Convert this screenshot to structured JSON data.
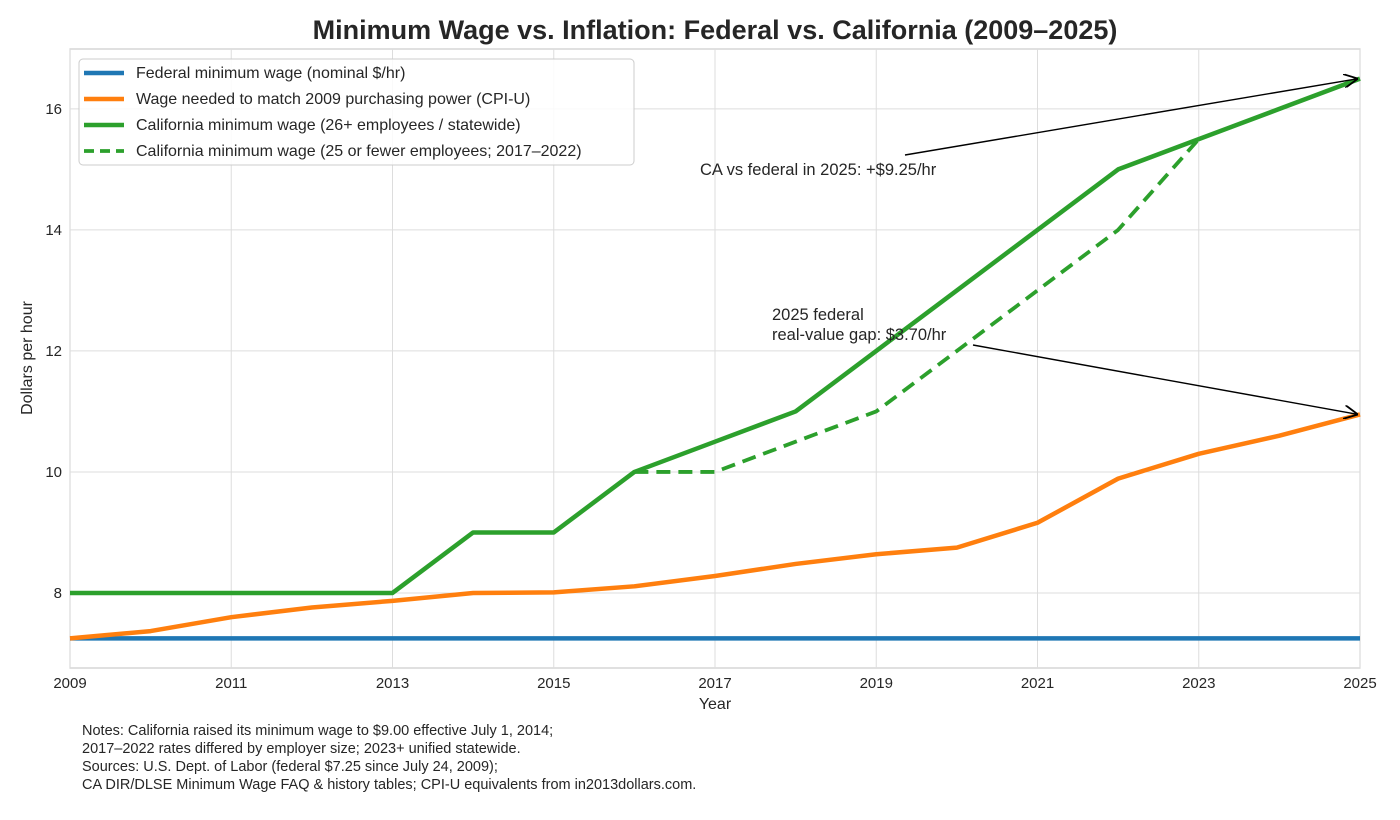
{
  "chart_data": {
    "type": "line",
    "title": "Minimum Wage vs. Inflation: Federal vs. California (2009–2025)",
    "xlabel": "Year",
    "ylabel": "Dollars per hour",
    "xlim": [
      2009,
      2025
    ],
    "ylim": [
      6.76,
      16.99
    ],
    "xticks": [
      2009,
      2011,
      2013,
      2015,
      2017,
      2019,
      2021,
      2023,
      2025
    ],
    "yticks": [
      8,
      10,
      12,
      14,
      16
    ],
    "grid": true,
    "legend_position": "top-left",
    "series": [
      {
        "name": "Federal minimum wage (nominal $/hr)",
        "color": "#1f77b4",
        "style": "solid",
        "x": [
          2009,
          2010,
          2011,
          2012,
          2013,
          2014,
          2015,
          2016,
          2017,
          2018,
          2019,
          2020,
          2021,
          2022,
          2023,
          2024,
          2025
        ],
        "y": [
          7.25,
          7.25,
          7.25,
          7.25,
          7.25,
          7.25,
          7.25,
          7.25,
          7.25,
          7.25,
          7.25,
          7.25,
          7.25,
          7.25,
          7.25,
          7.25,
          7.25
        ]
      },
      {
        "name": "Wage needed to match 2009 purchasing power (CPI-U)",
        "color": "#ff7f0e",
        "style": "solid",
        "x": [
          2009,
          2010,
          2011,
          2012,
          2013,
          2014,
          2015,
          2016,
          2017,
          2018,
          2019,
          2020,
          2021,
          2022,
          2023,
          2024,
          2025
        ],
        "y": [
          7.25,
          7.37,
          7.6,
          7.76,
          7.87,
          8.0,
          8.01,
          8.11,
          8.28,
          8.48,
          8.64,
          8.75,
          9.16,
          9.89,
          10.3,
          10.6,
          10.95
        ]
      },
      {
        "name": "California minimum wage (26+ employees / statewide)",
        "color": "#2ca02c",
        "style": "solid",
        "x": [
          2009,
          2010,
          2011,
          2012,
          2013,
          2014,
          2015,
          2016,
          2017,
          2018,
          2019,
          2020,
          2021,
          2022,
          2023,
          2024,
          2025
        ],
        "y": [
          8,
          8,
          8,
          8,
          8,
          9,
          9,
          10,
          10.5,
          11,
          12,
          13,
          14,
          15,
          15.5,
          16,
          16.5
        ]
      },
      {
        "name": "California minimum wage (25 or fewer employees; 2017–2022)",
        "color": "#2ca02c",
        "style": "dashed",
        "x": [
          2016,
          2017,
          2018,
          2019,
          2020,
          2021,
          2022,
          2023
        ],
        "y": [
          10,
          10,
          10.5,
          11,
          12,
          13,
          14,
          15.5
        ]
      }
    ],
    "annotations": [
      {
        "text": "CA vs federal in 2025: +$9.25/hr",
        "target": [
          2025,
          16.5
        ]
      },
      {
        "text": "2025 federal\nreal-value gap: $3.70/hr",
        "target": [
          2025,
          10.95
        ]
      }
    ]
  },
  "notes": "Notes: California raised its minimum wage to $9.00 effective July 1, 2014;\n2017–2022 rates differed by employer size; 2023+ unified statewide.\nSources: U.S. Dept. of Labor (federal $7.25 since July 24, 2009);\nCA DIR/DLSE Minimum Wage FAQ & history tables; CPI-U equivalents from in2013dollars.com."
}
